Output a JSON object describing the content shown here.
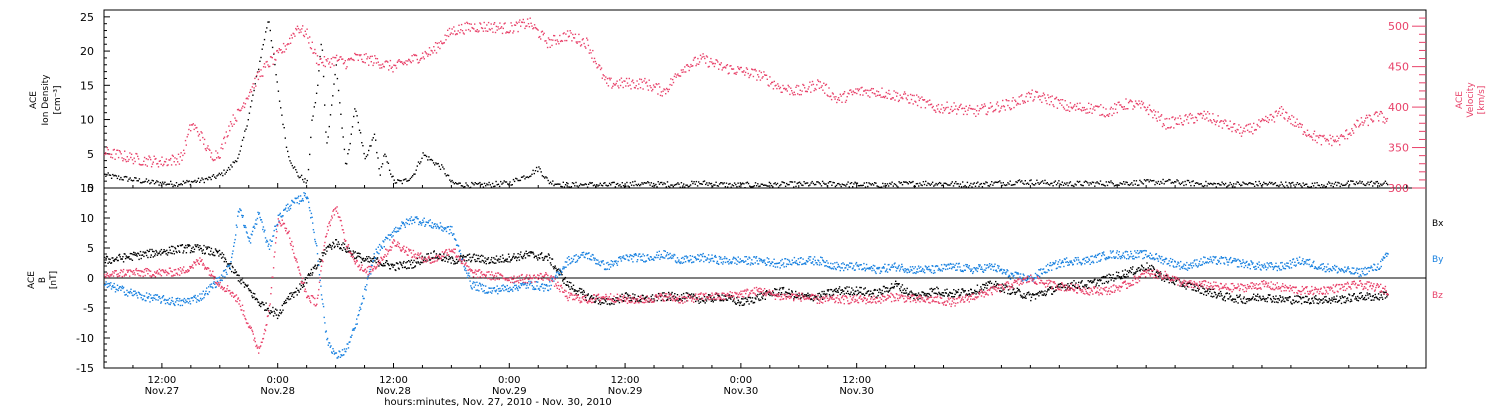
{
  "colors": {
    "axis": "#000000",
    "density": "#000000",
    "velocity": "#e8426a",
    "bx": "#000000",
    "by": "#1a82e0",
    "bz": "#e8426a"
  },
  "chart_data": [
    {
      "type": "scatter",
      "panel": "plasma",
      "ylabel_left": [
        "ACE",
        "Ion Density",
        "[cm⁻³]"
      ],
      "ylabel_right": [
        "ACE",
        "Velocity",
        "[km/s]"
      ],
      "ylim_left": [
        0,
        26
      ],
      "ylim_right": [
        300,
        520
      ],
      "yticks_left": [
        "0",
        "5",
        "10",
        "15",
        "20",
        "25"
      ],
      "yticks_right": [
        "300",
        "350",
        "400",
        "450",
        "500"
      ],
      "series": [
        {
          "axis": "left",
          "color": "density",
          "x": [
            0,
            1,
            2,
            3,
            4,
            5,
            6,
            7,
            8,
            9,
            10,
            11,
            12,
            13,
            14,
            15,
            16,
            17,
            18,
            19,
            20,
            20.5,
            21,
            21.5,
            22,
            22.5,
            23,
            24,
            25,
            26,
            27,
            28,
            28.5,
            29,
            30,
            31,
            32,
            33,
            34,
            35,
            36,
            37,
            38,
            39,
            40,
            41,
            42,
            43,
            44,
            45,
            46,
            48,
            50,
            52,
            55,
            60,
            62,
            65,
            70,
            75,
            80,
            85,
            90,
            95,
            100,
            105,
            110,
            115,
            120,
            125,
            130,
            133
          ],
          "y": [
            2,
            1.7,
            1.5,
            1.3,
            1.1,
            0.9,
            0.8,
            0.7,
            0.8,
            1.0,
            1.2,
            1.5,
            2,
            3,
            5,
            11,
            18,
            25,
            14,
            5,
            2,
            1.5,
            0.8,
            10,
            14,
            22,
            6,
            18,
            3,
            12,
            4,
            8,
            2,
            5,
            1,
            1,
            2,
            5,
            4,
            3,
            0.8,
            0.6,
            0.5,
            0.5,
            0.6,
            0.7,
            0.8,
            1.5,
            2,
            3,
            1,
            0.5,
            0.6,
            0.5,
            0.7,
            0.6,
            0.8,
            0.5,
            0.6,
            0.7,
            0.5,
            0.8,
            0.6,
            1,
            0.7,
            0.8,
            1,
            0.6,
            0.7,
            0.5,
            0.8,
            0.7
          ]
        },
        {
          "axis": "right",
          "color": "velocity",
          "x": [
            0,
            2,
            4,
            6,
            8,
            9,
            10,
            11,
            12,
            13,
            14,
            15,
            16,
            17,
            18,
            19,
            20,
            21,
            22,
            23,
            24,
            25,
            26,
            28,
            30,
            32,
            34,
            36,
            38,
            40,
            42,
            44,
            46,
            48,
            50,
            52,
            54,
            56,
            58,
            60,
            62,
            64,
            66,
            68,
            70,
            72,
            74,
            76,
            78,
            80,
            82,
            84,
            86,
            88,
            90,
            92,
            94,
            96,
            98,
            100,
            102,
            104,
            106,
            108,
            110,
            112,
            114,
            116,
            118,
            120,
            122,
            124,
            126,
            128,
            130,
            132,
            133
          ],
          "y": [
            345,
            340,
            335,
            333,
            338,
            380,
            365,
            340,
            345,
            380,
            395,
            420,
            440,
            455,
            465,
            480,
            500,
            490,
            460,
            455,
            460,
            455,
            462,
            458,
            450,
            460,
            470,
            495,
            500,
            500,
            498,
            505,
            480,
            490,
            480,
            430,
            430,
            430,
            420,
            450,
            460,
            450,
            445,
            440,
            425,
            420,
            430,
            410,
            420,
            420,
            415,
            410,
            400,
            400,
            395,
            400,
            405,
            415,
            410,
            400,
            400,
            395,
            405,
            400,
            380,
            385,
            390,
            380,
            370,
            380,
            395,
            375,
            360,
            360,
            380,
            390,
            385
          ]
        }
      ]
    },
    {
      "type": "scatter",
      "panel": "magnetic",
      "ylabel_left": [
        "ACE",
        "B",
        "[nT]"
      ],
      "ylim": [
        -15,
        15
      ],
      "yticks": [
        "-15",
        "-10",
        "-5",
        "0",
        "5",
        "10",
        "15"
      ],
      "legend": [
        "Bx",
        "By",
        "Bz"
      ],
      "legend_colors": [
        "bx",
        "by",
        "bz"
      ],
      "series": [
        {
          "name": "Bx",
          "color": "bx",
          "x": [
            0,
            2,
            4,
            6,
            8,
            10,
            12,
            13,
            14,
            15,
            16,
            17,
            18,
            19,
            20,
            21,
            22,
            23,
            24,
            25,
            26,
            27,
            28,
            30,
            32,
            34,
            36,
            38,
            40,
            42,
            44,
            46,
            48,
            50,
            52,
            54,
            56,
            58,
            60,
            62,
            64,
            66,
            68,
            70,
            72,
            74,
            76,
            78,
            80,
            82,
            84,
            86,
            88,
            90,
            92,
            94,
            96,
            98,
            100,
            102,
            104,
            106,
            108,
            110,
            112,
            114,
            116,
            118,
            120,
            122,
            124,
            126,
            128,
            130,
            132,
            133
          ],
          "y": [
            3,
            3.5,
            4,
            4.5,
            5,
            5,
            4,
            2,
            0,
            -2,
            -4,
            -5,
            -6,
            -3,
            -2,
            0,
            2,
            5,
            6,
            5,
            4,
            3,
            3,
            2,
            2.5,
            4,
            3,
            3.5,
            3,
            3.5,
            4,
            3.5,
            -1,
            -3,
            -4,
            -3,
            -3.5,
            -3,
            -3,
            -3.5,
            -3,
            -4,
            -3,
            -2,
            -3,
            -3,
            -2,
            -2,
            -2.5,
            -1,
            -3,
            -2,
            -2.5,
            -2,
            -1,
            -2,
            -3,
            -2,
            -1,
            -1,
            0,
            1,
            2,
            0,
            -1,
            -2,
            -3,
            -3.5,
            -3,
            -3.5,
            -3.5,
            -3.5,
            -3.5,
            -3,
            -3,
            -2.5
          ]
        },
        {
          "name": "By",
          "color": "by",
          "x": [
            0,
            2,
            4,
            6,
            8,
            10,
            12,
            13,
            14,
            15,
            16,
            17,
            18,
            19,
            20,
            21,
            22,
            23,
            24,
            25,
            26,
            27,
            28,
            30,
            32,
            34,
            36,
            38,
            40,
            42,
            44,
            46,
            48,
            50,
            52,
            54,
            56,
            58,
            60,
            62,
            64,
            66,
            68,
            70,
            72,
            74,
            76,
            78,
            80,
            82,
            84,
            86,
            88,
            90,
            92,
            94,
            96,
            98,
            100,
            102,
            104,
            106,
            108,
            110,
            112,
            114,
            116,
            118,
            120,
            122,
            124,
            126,
            128,
            130,
            132,
            133
          ],
          "y": [
            -1,
            -2,
            -3,
            -3.5,
            -4,
            -3,
            0,
            2,
            12,
            6,
            11,
            5,
            10,
            12,
            13,
            14,
            5,
            -10,
            -13,
            -12,
            -8,
            -2,
            4,
            8,
            10,
            9,
            8,
            -1,
            -2,
            -1.5,
            -1,
            -1.5,
            3,
            4,
            2,
            3.5,
            3.5,
            4,
            3,
            3.5,
            3,
            3,
            3,
            2.5,
            3,
            3,
            2,
            2,
            1.5,
            2,
            1.5,
            1.5,
            2,
            1.5,
            2,
            0.5,
            0,
            2,
            3,
            3,
            4,
            4,
            4,
            3,
            2,
            3,
            3,
            2.5,
            2,
            2,
            3,
            2,
            1.5,
            1,
            2,
            4
          ]
        },
        {
          "name": "Bz",
          "color": "bz",
          "x": [
            0,
            2,
            4,
            6,
            8,
            10,
            12,
            13,
            14,
            15,
            16,
            17,
            18,
            19,
            20,
            21,
            22,
            23,
            24,
            25,
            26,
            27,
            28,
            30,
            32,
            34,
            36,
            38,
            40,
            42,
            44,
            46,
            48,
            50,
            52,
            54,
            56,
            58,
            60,
            62,
            64,
            66,
            68,
            70,
            72,
            74,
            76,
            78,
            80,
            82,
            84,
            86,
            88,
            90,
            92,
            94,
            96,
            98,
            100,
            102,
            104,
            106,
            108,
            110,
            112,
            114,
            116,
            118,
            120,
            122,
            124,
            126,
            128,
            130,
            132,
            133
          ],
          "y": [
            0.5,
            1,
            1,
            1,
            1.2,
            3,
            -1,
            -2,
            -4,
            -8,
            -12,
            -6,
            10,
            8,
            2,
            -3,
            -4,
            8,
            12,
            6,
            3,
            1,
            2,
            6,
            4,
            3,
            5,
            1,
            0.5,
            0,
            0,
            0.5,
            -3,
            -3.5,
            -3,
            -3.5,
            -3.5,
            -3,
            -3.5,
            -3,
            -3,
            -2.5,
            -2,
            -3,
            -3,
            -3.5,
            -3.5,
            -3.5,
            -3.5,
            -3,
            -3.5,
            -3.5,
            -4,
            -3,
            -2,
            -1,
            0,
            -1,
            -1.5,
            -2,
            -2,
            -1,
            1,
            0.5,
            -1,
            -1,
            -1.5,
            -1.5,
            -1,
            -1.5,
            -2,
            -2,
            -1.5,
            -1,
            -1.5,
            -2
          ]
        }
      ]
    }
  ],
  "x_axis": {
    "range_hours": [
      6,
      143
    ],
    "ticks": [
      {
        "hour": 12,
        "time": "12:00",
        "date": "Nov.27"
      },
      {
        "hour": 24,
        "time": "0:00",
        "date": "Nov.28"
      },
      {
        "hour": 36,
        "time": "12:00",
        "date": "Nov.28"
      },
      {
        "hour": 48,
        "time": "0:00",
        "date": "Nov.29"
      },
      {
        "hour": 60,
        "time": "12:00",
        "date": "Nov.29"
      },
      {
        "hour": 72,
        "time": "0:00",
        "date": "Nov.30"
      },
      {
        "hour": 84,
        "time": "12:00",
        "date": "Nov.30"
      }
    ],
    "title": "hours:minutes, Nov. 27, 2010 - Nov. 30, 2010"
  }
}
